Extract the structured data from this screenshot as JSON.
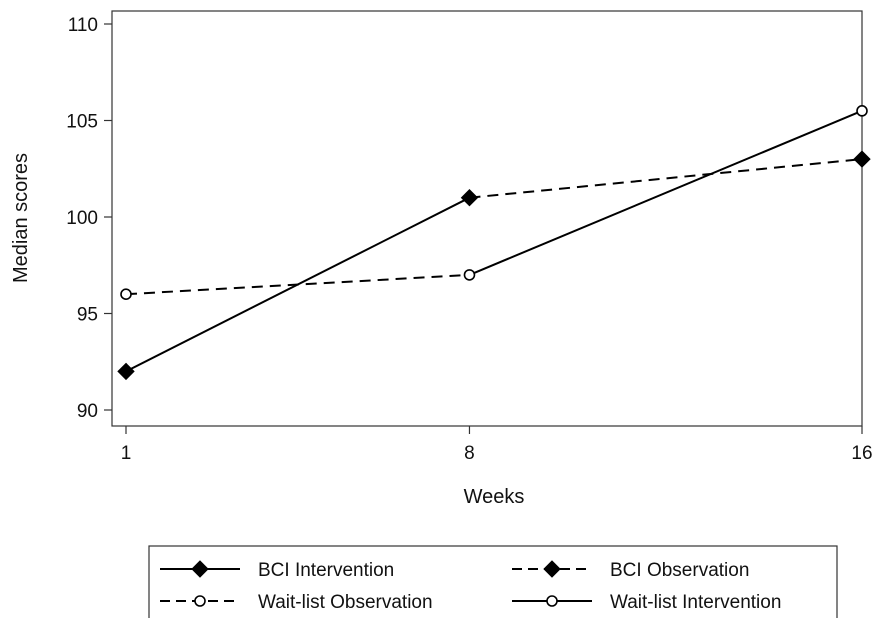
{
  "chart_data": {
    "type": "line",
    "title": "",
    "xlabel": "Weeks",
    "ylabel": "Median scores",
    "x": [
      1,
      8,
      16
    ],
    "x_tick_labels": [
      "1",
      "8",
      "16"
    ],
    "y_ticks": [
      90,
      95,
      100,
      105,
      110
    ],
    "y_tick_labels": [
      "90",
      "95",
      "100",
      "105",
      "110"
    ],
    "ylim": [
      89.5,
      110.5
    ],
    "grid": false,
    "legend_position": "bottom",
    "series": [
      {
        "name": "BCI Intervention",
        "values": [
          92,
          101,
          103
        ],
        "line_style": "solid",
        "marker": "filled-diamond",
        "segments": [
          [
            0,
            1
          ]
        ]
      },
      {
        "name": "BCI Observation",
        "values": [
          92,
          101,
          103
        ],
        "line_style": "dashed",
        "marker": "filled-diamond",
        "segments": [
          [
            1,
            2
          ]
        ]
      },
      {
        "name": "Wait-list Observation",
        "values": [
          96,
          97,
          105.5
        ],
        "line_style": "dashed",
        "marker": "hollow-circle",
        "segments": [
          [
            0,
            1
          ]
        ]
      },
      {
        "name": "Wait-list Intervention",
        "values": [
          96,
          97,
          105.5
        ],
        "line_style": "solid",
        "marker": "hollow-circle",
        "segments": [
          [
            1,
            2
          ]
        ]
      }
    ],
    "legend_order": [
      0,
      1,
      2,
      3
    ]
  },
  "colors": {
    "line": "#000000",
    "axis": "#333333",
    "background": "#ffffff"
  }
}
